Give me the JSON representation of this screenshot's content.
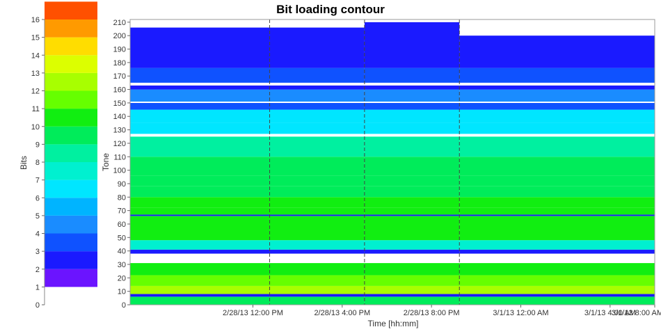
{
  "chart_data": {
    "type": "heatmap",
    "title": "Bit loading contour",
    "xlabel": "Time [hh:mm]",
    "ylabel": "Tone",
    "x_ticks": [
      "2/28/13 12:00 PM",
      "2/28/13 4:00 PM",
      "2/28/13 8:00 PM",
      "3/1/13 12:00 AM",
      "3/1/13 4:00 AM",
      "3/1/13 8:00 AM"
    ],
    "x_range_hours": [
      6.5,
      30.0
    ],
    "x_tick_hours": [
      12,
      16,
      20,
      24,
      28,
      32
    ],
    "y_range": [
      0,
      212
    ],
    "y_ticks": [
      0,
      10,
      20,
      30,
      40,
      50,
      60,
      70,
      80,
      90,
      100,
      110,
      120,
      130,
      140,
      150,
      160,
      170,
      180,
      190,
      200,
      210
    ],
    "colorbar": {
      "label": "Bits",
      "range": [
        0,
        16
      ],
      "ticks": [
        0,
        1,
        2,
        3,
        4,
        5,
        6,
        7,
        8,
        9,
        10,
        11,
        12,
        13,
        14,
        15,
        16
      ],
      "colors": [
        "#6b14ff",
        "#1a1aff",
        "#0f52ff",
        "#1a8cff",
        "#00b4ff",
        "#00e6ff",
        "#00f0d0",
        "#00f0a0",
        "#00ec5a",
        "#11ee11",
        "#66ff00",
        "#a8ff00",
        "#dcff00",
        "#ffdd00",
        "#ff9a00",
        "#ff5000"
      ]
    },
    "sessions": [
      {
        "start": 6.5,
        "end": 12.75,
        "max_tone": 206
      },
      {
        "start": 12.75,
        "end": 17.0,
        "max_tone": 206
      },
      {
        "start": 17.0,
        "end": 21.25,
        "max_tone": 210
      },
      {
        "start": 21.25,
        "end": 30.0,
        "max_tone": 200
      },
      {
        "start": 30.0,
        "end": 34.0,
        "max_tone": 201
      }
    ],
    "session_boundaries": [
      12.75,
      17.0,
      21.25,
      30.0
    ],
    "tone_bands": [
      {
        "from": 0,
        "to": 6,
        "bits": 9
      },
      {
        "from": 6,
        "to": 8,
        "bits": 2
      },
      {
        "from": 8,
        "to": 14,
        "bits": 12
      },
      {
        "from": 14,
        "to": 22,
        "bits": 11
      },
      {
        "from": 22,
        "to": 31,
        "bits": 10
      },
      {
        "from": 31,
        "to": 38,
        "bits": 0
      },
      {
        "from": 38,
        "to": 41,
        "bits": 2
      },
      {
        "from": 41,
        "to": 48,
        "bits": 7
      },
      {
        "from": 48,
        "to": 66,
        "bits": 10
      },
      {
        "from": 66,
        "to": 67,
        "bits": 2
      },
      {
        "from": 67,
        "to": 72,
        "bits": 10
      },
      {
        "from": 72,
        "to": 80,
        "bits": 10
      },
      {
        "from": 80,
        "to": 88,
        "bits": 9
      },
      {
        "from": 88,
        "to": 96,
        "bits": 9
      },
      {
        "from": 96,
        "to": 110,
        "bits": 9
      },
      {
        "from": 110,
        "to": 125,
        "bits": 8
      },
      {
        "from": 125,
        "to": 127,
        "bits": 0
      },
      {
        "from": 127,
        "to": 135,
        "bits": 6
      },
      {
        "from": 135,
        "to": 145,
        "bits": 6
      },
      {
        "from": 145,
        "to": 150,
        "bits": 3
      },
      {
        "from": 150,
        "to": 151,
        "bits": 0
      },
      {
        "from": 151,
        "to": 160,
        "bits": 4
      },
      {
        "from": 160,
        "to": 163,
        "bits": 2
      },
      {
        "from": 163,
        "to": 165,
        "bits": 0
      },
      {
        "from": 165,
        "to": 176,
        "bits": 3
      },
      {
        "from": 176,
        "to": 212,
        "bits": 2
      }
    ]
  }
}
